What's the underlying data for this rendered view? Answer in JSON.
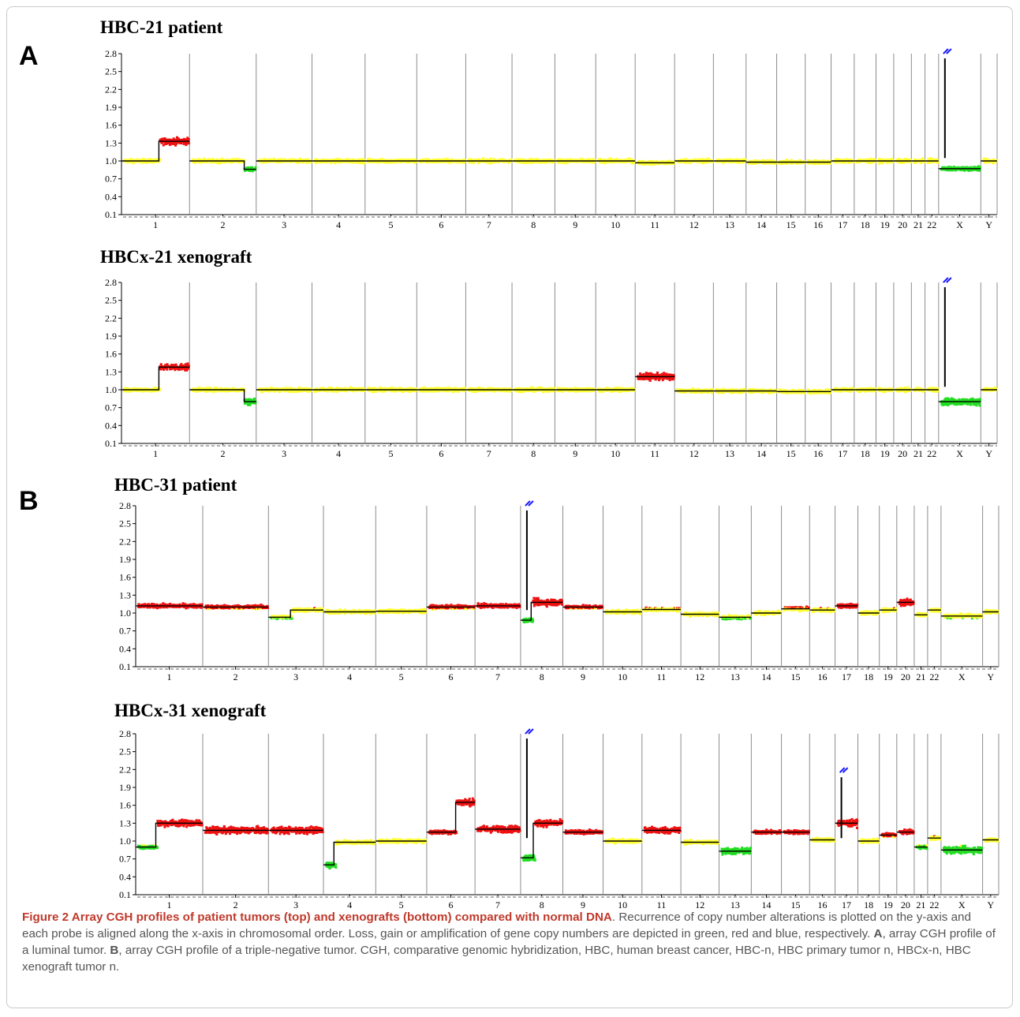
{
  "panels": {
    "A": "A",
    "B": "B"
  },
  "colors": {
    "normal": "#ffff33",
    "loss": "#22dd22",
    "gain": "#ee1111",
    "amplification": "#1a1aff",
    "segment": "#000000",
    "grid": "#8c8c8c"
  },
  "chart_data": [
    {
      "type": "scatter",
      "title": "HBC-21 patient",
      "ylim": [
        0.1,
        2.8
      ],
      "yticks": [
        "2.8",
        "2.5",
        "2.2",
        "1.9",
        "1.6",
        "1.3",
        "1.0",
        "0.7",
        "0.4",
        "0.1"
      ],
      "x_categories": [
        "1",
        "2",
        "3",
        "4",
        "5",
        "6",
        "7",
        "8",
        "9",
        "10",
        "11",
        "12",
        "13",
        "14",
        "15",
        "16",
        "17",
        "18",
        "19",
        "20",
        "21",
        "22",
        "X",
        "Y"
      ],
      "chromosome_baselines": [
        1.0,
        1.0,
        1.0,
        1.0,
        1.0,
        1.0,
        1.0,
        1.0,
        1.0,
        1.0,
        0.97,
        1.0,
        1.0,
        0.98,
        0.98,
        0.98,
        1.0,
        1.0,
        1.0,
        1.0,
        1.0,
        1.0,
        0.87,
        1.0
      ],
      "gain_segments": [
        {
          "chr": "1",
          "from": 0.0,
          "to": 0.55,
          "value": 1.0
        },
        {
          "chr": "1",
          "from": 0.55,
          "to": 1.0,
          "value": 1.33
        }
      ],
      "loss_segments": [
        {
          "chr": "2",
          "from": 0.82,
          "to": 1.0,
          "value": 0.86
        }
      ],
      "amplification_markers": [
        {
          "chr": "X",
          "value": 2.8
        }
      ],
      "series": [
        "normal",
        "loss",
        "gain",
        "amplification"
      ],
      "grid": true
    },
    {
      "type": "scatter",
      "title": "HBCx-21 xenograft",
      "ylim": [
        0.1,
        2.8
      ],
      "yticks": [
        "2.8",
        "2.5",
        "2.2",
        "1.9",
        "1.6",
        "1.3",
        "1.0",
        "0.7",
        "0.4",
        "0.1"
      ],
      "x_categories": [
        "1",
        "2",
        "3",
        "4",
        "5",
        "6",
        "7",
        "8",
        "9",
        "10",
        "11",
        "12",
        "13",
        "14",
        "15",
        "16",
        "17",
        "18",
        "19",
        "20",
        "21",
        "22",
        "X",
        "Y"
      ],
      "chromosome_baselines": [
        1.0,
        1.0,
        1.0,
        1.0,
        1.0,
        1.0,
        1.0,
        1.0,
        1.0,
        1.0,
        1.22,
        0.98,
        0.98,
        0.98,
        0.97,
        0.97,
        1.0,
        1.0,
        1.0,
        1.0,
        1.0,
        1.0,
        0.8,
        1.0
      ],
      "gain_segments": [
        {
          "chr": "1",
          "from": 0.0,
          "to": 0.55,
          "value": 1.0
        },
        {
          "chr": "1",
          "from": 0.55,
          "to": 1.0,
          "value": 1.38
        },
        {
          "chr": "11",
          "from": 0.0,
          "to": 1.0,
          "value": 1.22
        }
      ],
      "loss_segments": [
        {
          "chr": "2",
          "from": 0.82,
          "to": 1.0,
          "value": 0.8
        }
      ],
      "amplification_markers": [
        {
          "chr": "X",
          "value": 2.8
        }
      ],
      "series": [
        "normal",
        "loss",
        "gain",
        "amplification"
      ],
      "grid": true
    },
    {
      "type": "scatter",
      "title": "HBC-31 patient",
      "ylim": [
        0.1,
        2.8
      ],
      "yticks": [
        "2.8",
        "2.5",
        "2.2",
        "1.9",
        "1.6",
        "1.3",
        "1.0",
        "0.7",
        "0.4",
        "0.1"
      ],
      "x_categories": [
        "1",
        "2",
        "3",
        "4",
        "5",
        "6",
        "7",
        "8",
        "9",
        "10",
        "11",
        "12",
        "13",
        "14",
        "15",
        "16",
        "17",
        "18",
        "19",
        "20",
        "21",
        "22",
        "X",
        "Y"
      ],
      "chromosome_baselines": [
        1.12,
        1.1,
        1.05,
        1.02,
        1.03,
        1.1,
        1.12,
        1.18,
        1.1,
        1.02,
        1.06,
        0.98,
        0.93,
        1.0,
        1.07,
        1.05,
        1.12,
        1.0,
        1.05,
        1.18,
        0.97,
        1.05,
        0.95,
        1.02
      ],
      "gain_segments": [],
      "loss_segments": [
        {
          "chr": "3",
          "from": 0.0,
          "to": 0.4,
          "value": 0.93
        },
        {
          "chr": "8",
          "from": 0.0,
          "to": 0.25,
          "value": 0.88
        }
      ],
      "amplification_markers": [
        {
          "chr": "8",
          "value": 2.8
        }
      ],
      "series": [
        "normal",
        "loss",
        "gain",
        "amplification"
      ],
      "grid": true
    },
    {
      "type": "scatter",
      "title": "HBCx-31 xenograft",
      "ylim": [
        0.1,
        2.8
      ],
      "yticks": [
        "2.8",
        "2.5",
        "2.2",
        "1.9",
        "1.6",
        "1.3",
        "1.0",
        "0.7",
        "0.4",
        "0.1"
      ],
      "x_categories": [
        "1",
        "2",
        "3",
        "4",
        "5",
        "6",
        "7",
        "8",
        "9",
        "10",
        "11",
        "12",
        "13",
        "14",
        "15",
        "16",
        "17",
        "18",
        "19",
        "20",
        "21",
        "22",
        "X",
        "Y"
      ],
      "chromosome_baselines": [
        1.3,
        1.18,
        1.18,
        0.98,
        1.0,
        1.15,
        1.2,
        1.3,
        1.15,
        1.0,
        1.18,
        0.98,
        0.83,
        1.15,
        1.15,
        1.02,
        1.3,
        1.0,
        1.1,
        1.15,
        0.9,
        1.05,
        0.85,
        1.02
      ],
      "gain_segments": [
        {
          "chr": "6",
          "from": 0.6,
          "to": 1.0,
          "value": 1.65
        }
      ],
      "loss_segments": [
        {
          "chr": "1",
          "from": 0.0,
          "to": 0.3,
          "value": 0.9
        },
        {
          "chr": "4",
          "from": 0.0,
          "to": 0.2,
          "value": 0.6
        },
        {
          "chr": "8",
          "from": 0.0,
          "to": 0.3,
          "value": 0.72
        }
      ],
      "amplification_markers": [
        {
          "chr": "8",
          "value": 2.8
        },
        {
          "chr": "17",
          "value": 2.15
        }
      ],
      "series": [
        "normal",
        "loss",
        "gain",
        "amplification"
      ],
      "grid": true
    }
  ],
  "caption": {
    "lead": "Figure 2 Array CGH profiles of patient tumors (top) and xenografts (bottom) compared with normal DNA",
    "body1": ". Recurrence of copy number alterations is plotted on the y-axis and each probe is aligned along the x-axis in chromosomal order. Loss, gain or amplification of gene copy numbers are depicted in green, red and blue, respectively. ",
    "a": "A",
    "body2": ", array CGH profile of a luminal tumor. ",
    "b": "B",
    "body3": ", array CGH profile of a triple-negative tumor. CGH, comparative genomic hybridization, HBC, human breast cancer, HBC-n, HBC primary tumor n, HBCx-n, HBC xenograft tumor n."
  }
}
